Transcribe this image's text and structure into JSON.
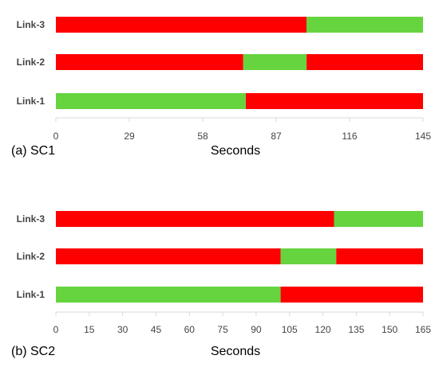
{
  "colors": {
    "red": "#ff0000",
    "green": "#66d43f",
    "axis": "#d9d9d9"
  },
  "chart_data": [
    {
      "type": "bar",
      "orientation": "horizontal-stacked-timeline",
      "panel_label": "(a) SC1",
      "xlabel": "Seconds",
      "xlim": [
        0,
        145
      ],
      "x_ticks": [
        0,
        29,
        58,
        87,
        116,
        145
      ],
      "categories": [
        "Link-3",
        "Link-2",
        "Link-1"
      ],
      "grid": false,
      "series": [
        {
          "category": "Link-3",
          "segments": [
            {
              "start": 0,
              "end": 99,
              "color": "red"
            },
            {
              "start": 99,
              "end": 145,
              "color": "green"
            }
          ]
        },
        {
          "category": "Link-2",
          "segments": [
            {
              "start": 0,
              "end": 74,
              "color": "red"
            },
            {
              "start": 74,
              "end": 99,
              "color": "green"
            },
            {
              "start": 99,
              "end": 145,
              "color": "red"
            }
          ]
        },
        {
          "category": "Link-1",
          "segments": [
            {
              "start": 0,
              "end": 75,
              "color": "green"
            },
            {
              "start": 75,
              "end": 145,
              "color": "red"
            }
          ]
        }
      ]
    },
    {
      "type": "bar",
      "orientation": "horizontal-stacked-timeline",
      "panel_label": "(b) SC2",
      "xlabel": "Seconds",
      "xlim": [
        0,
        165
      ],
      "x_ticks": [
        0,
        15,
        30,
        45,
        60,
        75,
        90,
        105,
        120,
        135,
        150,
        165
      ],
      "categories": [
        "Link-3",
        "Link-2",
        "Link-1"
      ],
      "grid": false,
      "series": [
        {
          "category": "Link-3",
          "segments": [
            {
              "start": 0,
              "end": 125,
              "color": "red"
            },
            {
              "start": 125,
              "end": 165,
              "color": "green"
            }
          ]
        },
        {
          "category": "Link-2",
          "segments": [
            {
              "start": 0,
              "end": 101,
              "color": "red"
            },
            {
              "start": 101,
              "end": 126,
              "color": "green"
            },
            {
              "start": 126,
              "end": 165,
              "color": "red"
            }
          ]
        },
        {
          "category": "Link-1",
          "segments": [
            {
              "start": 0,
              "end": 101,
              "color": "green"
            },
            {
              "start": 101,
              "end": 165,
              "color": "red"
            }
          ]
        }
      ]
    }
  ]
}
